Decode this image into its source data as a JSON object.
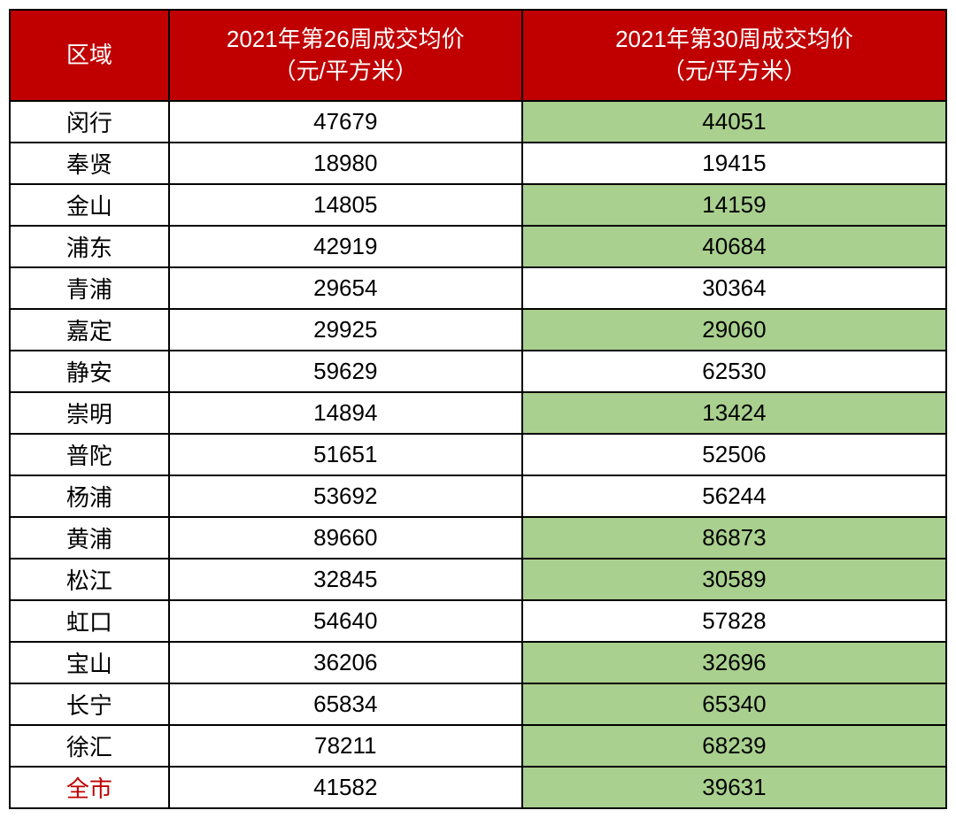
{
  "table": {
    "headers": {
      "col1": "区域",
      "col2_line1": "2021年第26周成交均价",
      "col2_line2": "（元/平方米）",
      "col3_line1": "2021年第30周成交均价",
      "col3_line2": "（元/平方米）"
    },
    "rows": [
      {
        "region": "闵行",
        "week26": "47679",
        "week30": "44051",
        "highlight": true,
        "redText": false
      },
      {
        "region": "奉贤",
        "week26": "18980",
        "week30": "19415",
        "highlight": false,
        "redText": false
      },
      {
        "region": "金山",
        "week26": "14805",
        "week30": "14159",
        "highlight": true,
        "redText": false
      },
      {
        "region": "浦东",
        "week26": "42919",
        "week30": "40684",
        "highlight": true,
        "redText": false
      },
      {
        "region": "青浦",
        "week26": "29654",
        "week30": "30364",
        "highlight": false,
        "redText": false
      },
      {
        "region": "嘉定",
        "week26": "29925",
        "week30": "29060",
        "highlight": true,
        "redText": false
      },
      {
        "region": "静安",
        "week26": "59629",
        "week30": "62530",
        "highlight": false,
        "redText": false
      },
      {
        "region": "崇明",
        "week26": "14894",
        "week30": "13424",
        "highlight": true,
        "redText": false
      },
      {
        "region": "普陀",
        "week26": "51651",
        "week30": "52506",
        "highlight": false,
        "redText": false
      },
      {
        "region": "杨浦",
        "week26": "53692",
        "week30": "56244",
        "highlight": false,
        "redText": false
      },
      {
        "region": "黄浦",
        "week26": "89660",
        "week30": "86873",
        "highlight": true,
        "redText": false
      },
      {
        "region": "松江",
        "week26": "32845",
        "week30": "30589",
        "highlight": true,
        "redText": false
      },
      {
        "region": "虹口",
        "week26": "54640",
        "week30": "57828",
        "highlight": false,
        "redText": false
      },
      {
        "region": "宝山",
        "week26": "36206",
        "week30": "32696",
        "highlight": true,
        "redText": false
      },
      {
        "region": "长宁",
        "week26": "65834",
        "week30": "65340",
        "highlight": true,
        "redText": false
      },
      {
        "region": "徐汇",
        "week26": "78211",
        "week30": "68239",
        "highlight": true,
        "redText": false
      },
      {
        "region": "全市",
        "week26": "41582",
        "week30": "39631",
        "highlight": true,
        "redText": true
      }
    ],
    "colors": {
      "headerBg": "#c00000",
      "headerText": "#ffffff",
      "cellBg": "#ffffff",
      "highlightBg": "#a9d08e",
      "cellText": "#000000",
      "redText": "#c00000",
      "border": "#000000"
    }
  }
}
